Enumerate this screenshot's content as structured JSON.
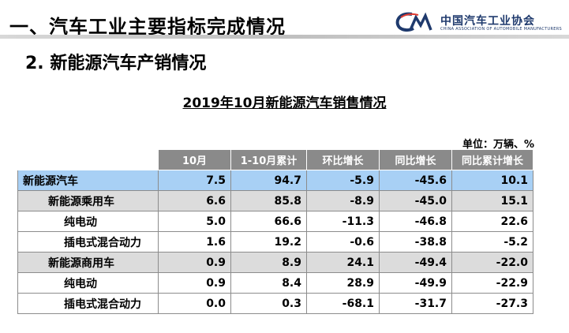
{
  "header": {
    "slide_title": "一、汽车工业主要指标完成情况",
    "logo_text": "中国汽车工业协会",
    "logo_subtext": "CHINA ASSOCIATION OF AUTOMOBILE MANUFACTURERS"
  },
  "section_title": "2. 新能源汽车产销情况",
  "table_title": "2019年10月新能源汽车销售情况",
  "unit": "单位：万辆、%",
  "columns": [
    "10月",
    "1-10月累计",
    "环比增长",
    "同比增长",
    "同比累计增长"
  ],
  "rows": [
    {
      "label": "新能源汽车",
      "level": 0,
      "style": "total",
      "values": [
        "7.5",
        "94.7",
        "-5.9",
        "-45.6",
        "10.1"
      ]
    },
    {
      "label": "新能源乘用车",
      "level": 1,
      "style": "sub",
      "values": [
        "6.6",
        "85.8",
        "-8.9",
        "-45.0",
        "15.1"
      ]
    },
    {
      "label": "纯电动",
      "level": 2,
      "style": "item",
      "values": [
        "5.0",
        "66.6",
        "-11.3",
        "-46.8",
        "22.6"
      ]
    },
    {
      "label": "插电式混合动力",
      "level": 2,
      "style": "item",
      "values": [
        "1.6",
        "19.2",
        "-0.6",
        "-38.8",
        "-5.2"
      ]
    },
    {
      "label": "新能源商用车",
      "level": 1,
      "style": "sub",
      "values": [
        "0.9",
        "8.9",
        "24.1",
        "-49.4",
        "-22.0"
      ]
    },
    {
      "label": "纯电动",
      "level": 2,
      "style": "item",
      "values": [
        "0.9",
        "8.4",
        "28.9",
        "-49.9",
        "-22.9"
      ]
    },
    {
      "label": "插电式混合动力",
      "level": 2,
      "style": "item",
      "values": [
        "0.0",
        "0.3",
        "-68.1",
        "-31.7",
        "-27.3"
      ]
    }
  ],
  "colors": {
    "header_bg": "#8a8a8a",
    "total_row_bg": "#a8d0f5",
    "sub_row_bg": "#dcdcdc",
    "logo_color": "#1f3a6d"
  }
}
